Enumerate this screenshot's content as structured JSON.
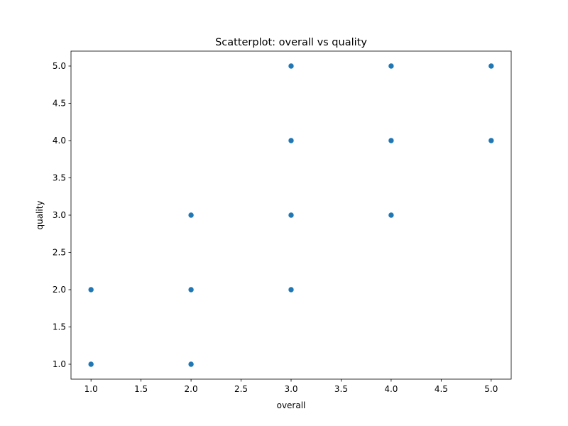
{
  "chart_data": {
    "type": "scatter",
    "title": "Scatterplot: overall vs quality",
    "xlabel": "overall",
    "ylabel": "quality",
    "xlim": [
      0.8,
      5.2
    ],
    "ylim": [
      0.8,
      5.2
    ],
    "xticks": [
      1.0,
      1.5,
      2.0,
      2.5,
      3.0,
      3.5,
      4.0,
      4.5,
      5.0
    ],
    "yticks": [
      1.0,
      1.5,
      2.0,
      2.5,
      3.0,
      3.5,
      4.0,
      4.5,
      5.0
    ],
    "xtick_labels": [
      "1.0",
      "1.5",
      "2.0",
      "2.5",
      "3.0",
      "3.5",
      "4.0",
      "4.5",
      "5.0"
    ],
    "ytick_labels": [
      "1.0",
      "1.5",
      "2.0",
      "2.5",
      "3.0",
      "3.5",
      "4.0",
      "4.5",
      "5.0"
    ],
    "grid": false,
    "marker_color": "#1f77b4",
    "points": [
      {
        "x": 1,
        "y": 1
      },
      {
        "x": 1,
        "y": 2
      },
      {
        "x": 2,
        "y": 1
      },
      {
        "x": 2,
        "y": 2
      },
      {
        "x": 2,
        "y": 3
      },
      {
        "x": 3,
        "y": 2
      },
      {
        "x": 3,
        "y": 3
      },
      {
        "x": 3,
        "y": 4
      },
      {
        "x": 3,
        "y": 5
      },
      {
        "x": 4,
        "y": 3
      },
      {
        "x": 4,
        "y": 4
      },
      {
        "x": 4,
        "y": 5
      },
      {
        "x": 5,
        "y": 4
      },
      {
        "x": 5,
        "y": 5
      }
    ]
  }
}
